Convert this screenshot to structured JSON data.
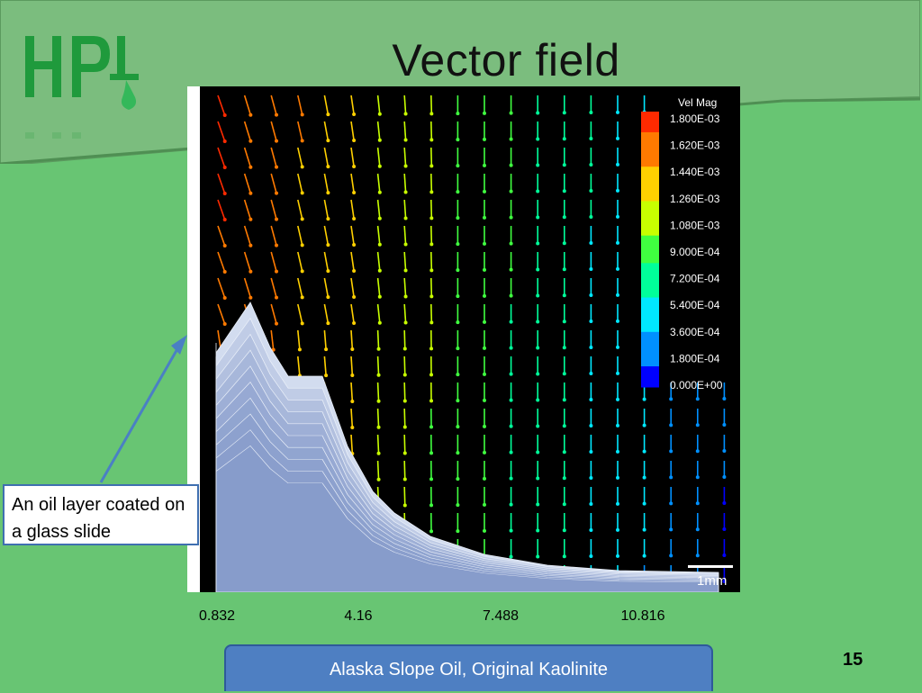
{
  "slide": {
    "title": "Vector field",
    "page_number": "15",
    "caption": "Alaska Slope Oil, Original Kaolinite",
    "annotation": "An oil layer coated on a glass slide",
    "logo_text": "HPL",
    "colors": {
      "background": "#68c573",
      "header_band": "#7bbd7e",
      "caption_fill": "#4e7fc2",
      "annotation_border": "#3f6fb0",
      "logo_green": "#1f9a3c",
      "plot_background": "#000000",
      "oil_layer": "#b3c3e0"
    }
  },
  "chart_data": {
    "type": "vector field",
    "x_tick_labels": [
      "0.832",
      "4.16",
      "7.488",
      "10.816"
    ],
    "x_ticks": [
      0.832,
      4.16,
      7.488,
      10.816
    ],
    "legend": {
      "title": "Vel Mag",
      "placement": "top-right",
      "levels": [
        "1.800E-03",
        "1.620E-03",
        "1.440E-03",
        "1.260E-03",
        "1.080E-03",
        "9.000E-04",
        "7.200E-04",
        "5.400E-04",
        "3.600E-04",
        "1.800E-04",
        "0.000E+00"
      ],
      "min": 0,
      "max": 0.0018
    },
    "scale_bar": "1mm",
    "colormap": [
      "#ff2a00",
      "#ff7a00",
      "#ffd000",
      "#c8ff00",
      "#40ff40",
      "#00ff9a",
      "#00e8ff",
      "#0090ff",
      "#0000ff"
    ],
    "field": {
      "columns": 20,
      "rows": 19,
      "direction": "mostly downward, tilting right near top-left",
      "magnitude_trend": "high at top-left, decreasing toward right"
    }
  }
}
